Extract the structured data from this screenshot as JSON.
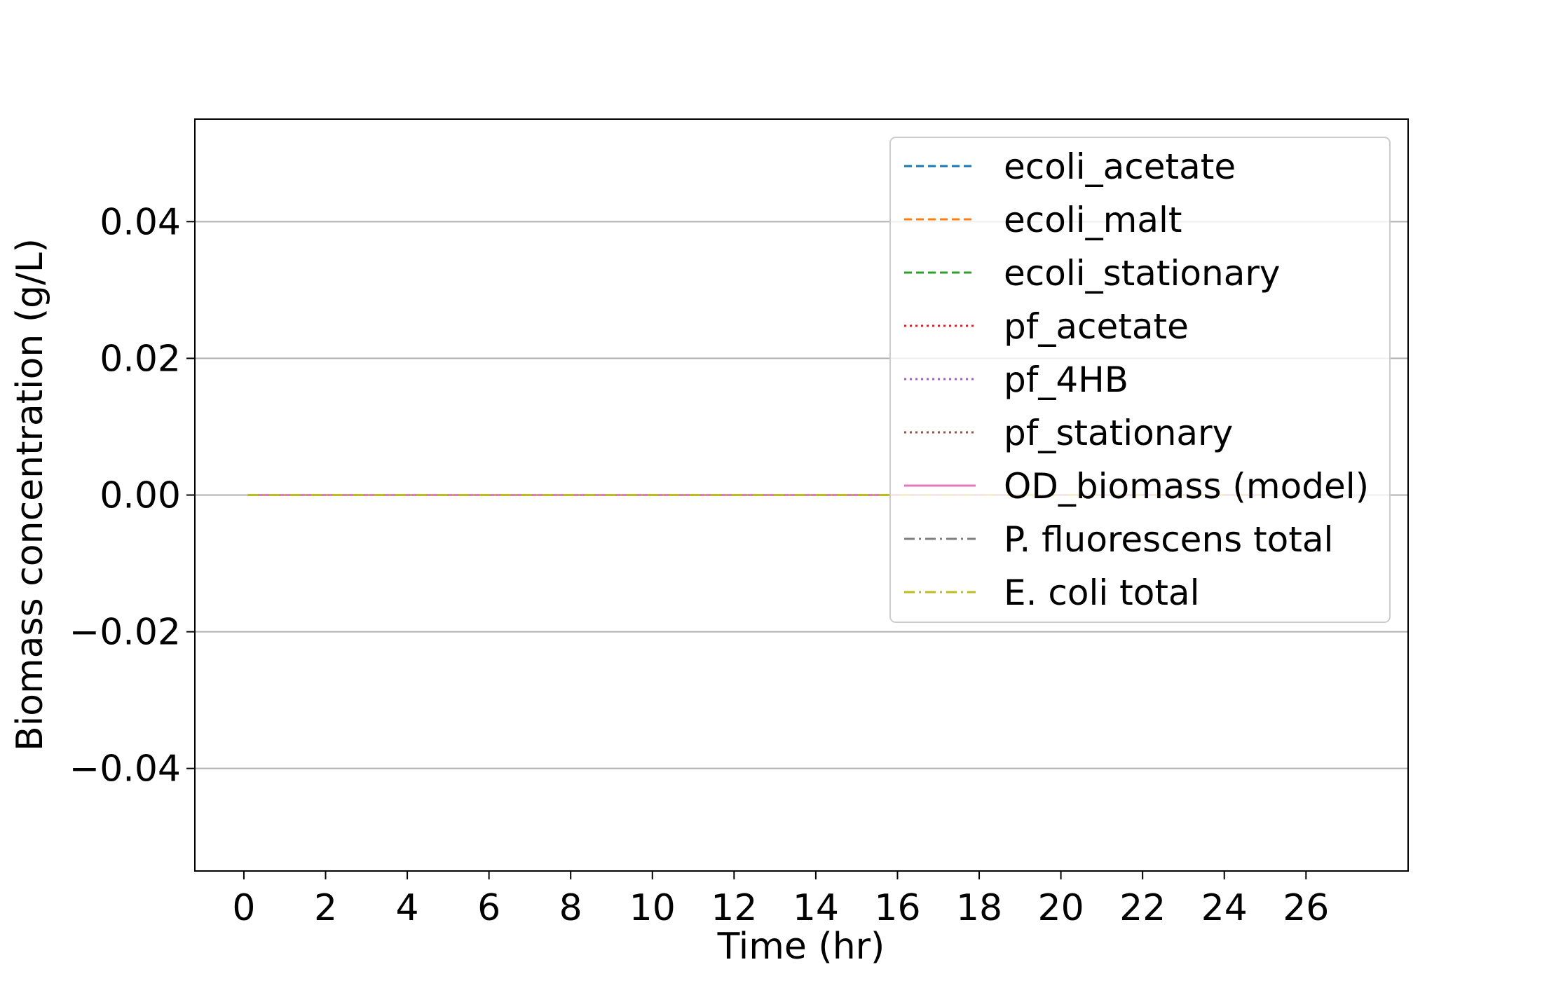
{
  "chart_data": {
    "type": "line",
    "xlabel": "Time (hr)",
    "ylabel": "Biomass concentration (g/L)",
    "xlim": [
      -1.2,
      28.5
    ],
    "ylim": [
      -0.055,
      0.055
    ],
    "x_ticks": [
      0,
      2,
      4,
      6,
      8,
      10,
      12,
      14,
      16,
      18,
      20,
      22,
      24,
      26
    ],
    "x_tick_labels": [
      "0",
      "2",
      "4",
      "6",
      "8",
      "10",
      "12",
      "14",
      "16",
      "18",
      "20",
      "22",
      "24",
      "26"
    ],
    "y_ticks": [
      -0.04,
      -0.02,
      0.0,
      0.02,
      0.04
    ],
    "y_tick_labels": [
      "−0.04",
      "−0.02",
      "0.00",
      "0.02",
      "0.04"
    ],
    "grid": "horizontal",
    "legend_position": "top-right",
    "x": [
      0.1,
      25
    ],
    "series": [
      {
        "name": "ecoli_acetate",
        "values": [
          0,
          0
        ],
        "color": "#1f77b4",
        "dash": "dashed"
      },
      {
        "name": "ecoli_malt",
        "values": [
          0,
          0
        ],
        "color": "#ff7f0e",
        "dash": "dashed"
      },
      {
        "name": "ecoli_stationary",
        "values": [
          0,
          0
        ],
        "color": "#2ca02c",
        "dash": "dashed"
      },
      {
        "name": "pf_acetate",
        "values": [
          0,
          0
        ],
        "color": "#d62728",
        "dash": "dotted"
      },
      {
        "name": "pf_4HB",
        "values": [
          0,
          0
        ],
        "color": "#9467bd",
        "dash": "dotted"
      },
      {
        "name": "pf_stationary",
        "values": [
          0,
          0
        ],
        "color": "#8c564b",
        "dash": "dotted"
      },
      {
        "name": "OD_biomass (model)",
        "values": [
          0,
          0
        ],
        "color": "#e377c2",
        "dash": "solid"
      },
      {
        "name": "P. fluorescens total",
        "values": [
          0,
          0
        ],
        "color": "#7f7f7f",
        "dash": "dashdot"
      },
      {
        "name": "E. coli total",
        "values": [
          0,
          0
        ],
        "color": "#bcbd22",
        "dash": "dashdot"
      }
    ]
  }
}
